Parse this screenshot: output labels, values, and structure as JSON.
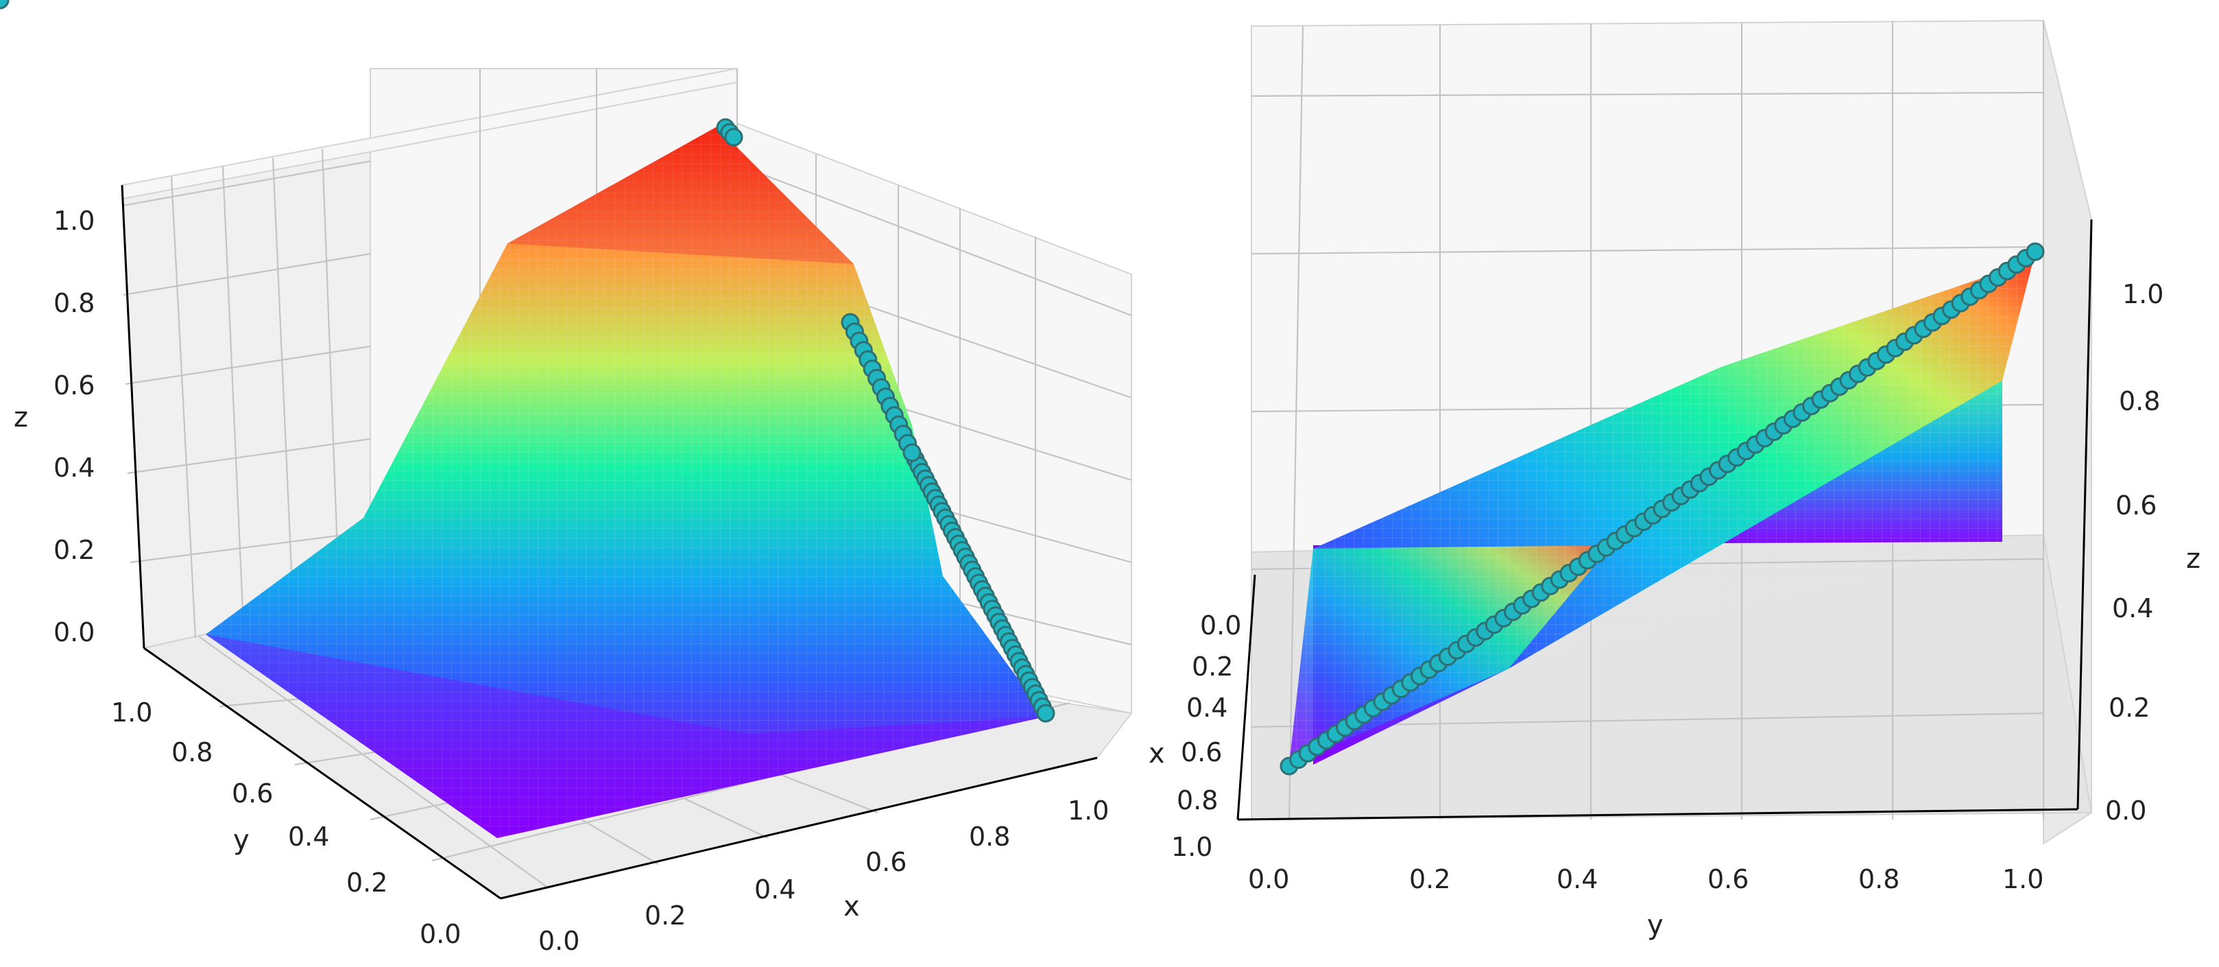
{
  "chart_data": [
    {
      "type": "surface3d",
      "panel": "left",
      "xlabel": "x",
      "ylabel": "y",
      "zlabel": "z",
      "x_ticks": [
        "0.0",
        "0.2",
        "0.4",
        "0.6",
        "0.8",
        "1.0"
      ],
      "y_ticks": [
        "0.0",
        "0.2",
        "0.4",
        "0.6",
        "0.8",
        "1.0"
      ],
      "z_ticks": [
        "0.0",
        "0.2",
        "0.4",
        "0.6",
        "0.8",
        "1.0"
      ],
      "xlim": [
        0,
        1
      ],
      "ylim": [
        0,
        1
      ],
      "zlim": [
        0,
        1
      ],
      "colormap": "rainbow",
      "surface": {
        "description": "z = x*y over the unit square",
        "x": [
          0,
          0.2,
          0.4,
          0.6,
          0.8,
          1.0
        ],
        "y": [
          0,
          0.2,
          0.4,
          0.6,
          0.8,
          1.0
        ]
      },
      "scatter": {
        "color": "#1fb6c1",
        "points": [
          [
            1.0,
            0.0,
            0.0
          ],
          [
            1.0,
            0.2,
            0.2
          ],
          [
            1.0,
            0.4,
            0.4
          ],
          [
            1.0,
            0.6,
            0.6
          ],
          [
            1.0,
            0.8,
            0.8
          ],
          [
            1.0,
            1.0,
            1.0
          ]
        ]
      },
      "grid": true
    },
    {
      "type": "surface3d",
      "panel": "right",
      "xlabel": "x",
      "ylabel": "y",
      "zlabel": "z",
      "x_ticks": [
        "0.0",
        "0.2",
        "0.4",
        "0.6",
        "0.8",
        "1.0"
      ],
      "y_ticks": [
        "0.0",
        "0.2",
        "0.4",
        "0.6",
        "0.8",
        "1.0"
      ],
      "z_ticks": [
        "0.0",
        "0.2",
        "0.4",
        "0.6",
        "0.8",
        "1.0"
      ],
      "xlim": [
        0,
        1
      ],
      "ylim": [
        0,
        1
      ],
      "zlim": [
        0,
        1
      ],
      "colormap": "rainbow",
      "surface": {
        "description": "same surface viewed edge-on along the y axis"
      },
      "scatter": {
        "color": "#1fb6c1",
        "points": [
          [
            1.0,
            0.0,
            0.0
          ],
          [
            1.0,
            0.2,
            0.2
          ],
          [
            1.0,
            0.4,
            0.4
          ],
          [
            1.0,
            0.6,
            0.6
          ],
          [
            1.0,
            0.8,
            0.8
          ],
          [
            1.0,
            1.0,
            1.0
          ]
        ]
      },
      "grid": true
    }
  ]
}
